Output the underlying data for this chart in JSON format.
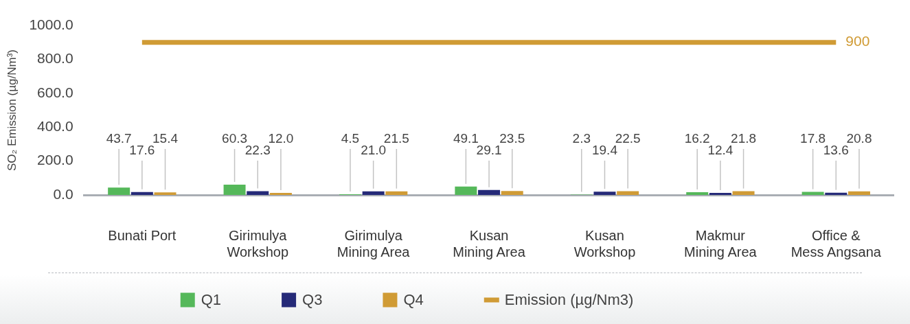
{
  "chart_data": {
    "type": "bar",
    "ylabel": "SO₂ Emission (µg/Nm³)",
    "categories": [
      "Bunati Port",
      "Girimulya\nWorkshop",
      "Girimulya\nMining Area",
      "Kusan\nMining Area",
      "Kusan\nWorkshop",
      "Makmur\nMining Area",
      "Office &\nMess Angsana"
    ],
    "series": [
      {
        "name": "Q1",
        "color": "#55b85a",
        "values": [
          43.7,
          60.3,
          4.5,
          49.1,
          2.3,
          16.2,
          17.8
        ],
        "value_labels": [
          "43.7",
          "60.3",
          "4.5",
          "49.1",
          "2.3",
          "16.2",
          "17.8"
        ]
      },
      {
        "name": "Q3",
        "color": "#252a78",
        "values": [
          17.6,
          22.3,
          21.0,
          29.1,
          19.4,
          12.4,
          13.6
        ],
        "value_labels": [
          "17.6",
          "22.3",
          "21.0",
          "29.1",
          "19.4",
          "12.4",
          "13.6"
        ]
      },
      {
        "name": "Q4",
        "color": "#d09b35",
        "values": [
          15.4,
          12.0,
          21.5,
          23.5,
          22.5,
          21.8,
          20.8
        ],
        "value_labels": [
          "15.4",
          "12.0",
          "21.5",
          "23.5",
          "22.5",
          "21.8",
          "20.8"
        ]
      },
      {
        "name": "Emission (µg/Nm3)",
        "type": "line",
        "color": "#d09b35",
        "values": [
          900,
          900,
          900,
          900,
          900,
          900,
          900
        ],
        "value_labels": [
          null,
          null,
          null,
          null,
          null,
          null,
          "900"
        ]
      }
    ],
    "ylim": [
      0,
      1000
    ],
    "yticks": [
      {
        "value": 0,
        "label": "0.0"
      },
      {
        "value": 200,
        "label": "200.0"
      },
      {
        "value": 400,
        "label": "400.0"
      },
      {
        "value": 600,
        "label": "600.0"
      },
      {
        "value": 800,
        "label": "800.0"
      },
      {
        "value": 1000,
        "label": "1000.0"
      }
    ],
    "grid": false,
    "legend": "bottom",
    "marker": "none"
  }
}
